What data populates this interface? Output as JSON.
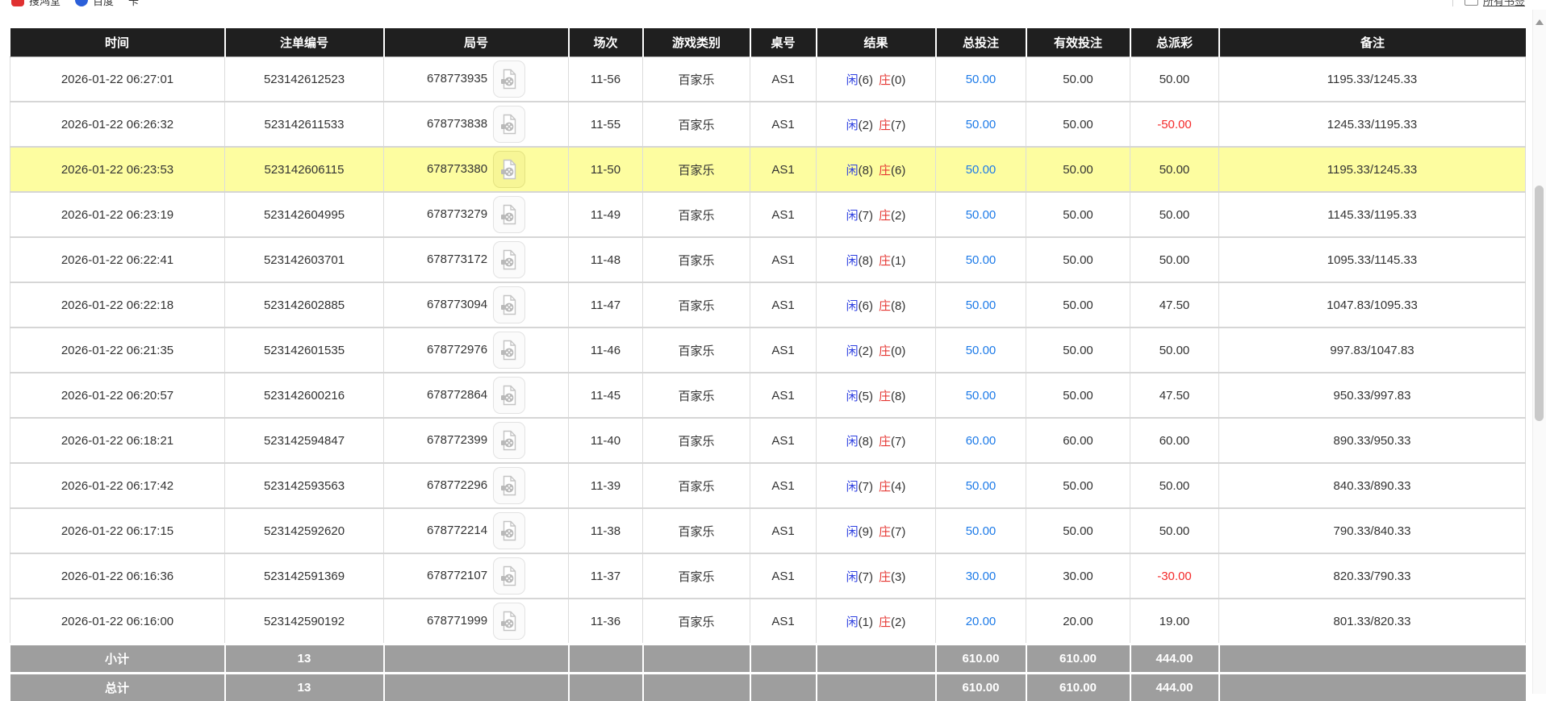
{
  "browser": {
    "bookmarks_bar": {
      "items": [
        {
          "label": "搜鸿堂",
          "icon": "red-bookmark-icon"
        },
        {
          "label": "百度",
          "icon": "blue-bookmark-icon"
        },
        {
          "label": "卡",
          "icon": ""
        }
      ],
      "all_bookmarks_label": "所有书签"
    }
  },
  "table": {
    "columns": [
      "时间",
      "注单编号",
      "局号",
      "场次",
      "游戏类别",
      "桌号",
      "结果",
      "总投注",
      "有效投注",
      "总派彩",
      "备注"
    ],
    "rows": [
      {
        "time": "2026-01-22 06:27:01",
        "bet_id": "523142612523",
        "round_id": "678773935",
        "session": "11-56",
        "game_type": "百家乐",
        "table_no": "AS1",
        "result": {
          "player_label": "闲",
          "player_score": "6",
          "banker_label": "庄",
          "banker_score": "0"
        },
        "total_bet": "50.00",
        "valid_bet": "50.00",
        "payout": "50.00",
        "remark": "1195.33/1245.33",
        "highlighted": false
      },
      {
        "time": "2026-01-22 06:26:32",
        "bet_id": "523142611533",
        "round_id": "678773838",
        "session": "11-55",
        "game_type": "百家乐",
        "table_no": "AS1",
        "result": {
          "player_label": "闲",
          "player_score": "2",
          "banker_label": "庄",
          "banker_score": "7"
        },
        "total_bet": "50.00",
        "valid_bet": "50.00",
        "payout": "-50.00",
        "remark": "1245.33/1195.33",
        "highlighted": false
      },
      {
        "time": "2026-01-22 06:23:53",
        "bet_id": "523142606115",
        "round_id": "678773380",
        "session": "11-50",
        "game_type": "百家乐",
        "table_no": "AS1",
        "result": {
          "player_label": "闲",
          "player_score": "8",
          "banker_label": "庄",
          "banker_score": "6"
        },
        "total_bet": "50.00",
        "valid_bet": "50.00",
        "payout": "50.00",
        "remark": "1195.33/1245.33",
        "highlighted": true
      },
      {
        "time": "2026-01-22 06:23:19",
        "bet_id": "523142604995",
        "round_id": "678773279",
        "session": "11-49",
        "game_type": "百家乐",
        "table_no": "AS1",
        "result": {
          "player_label": "闲",
          "player_score": "7",
          "banker_label": "庄",
          "banker_score": "2"
        },
        "total_bet": "50.00",
        "valid_bet": "50.00",
        "payout": "50.00",
        "remark": "1145.33/1195.33",
        "highlighted": false
      },
      {
        "time": "2026-01-22 06:22:41",
        "bet_id": "523142603701",
        "round_id": "678773172",
        "session": "11-48",
        "game_type": "百家乐",
        "table_no": "AS1",
        "result": {
          "player_label": "闲",
          "player_score": "8",
          "banker_label": "庄",
          "banker_score": "1"
        },
        "total_bet": "50.00",
        "valid_bet": "50.00",
        "payout": "50.00",
        "remark": "1095.33/1145.33",
        "highlighted": false
      },
      {
        "time": "2026-01-22 06:22:18",
        "bet_id": "523142602885",
        "round_id": "678773094",
        "session": "11-47",
        "game_type": "百家乐",
        "table_no": "AS1",
        "result": {
          "player_label": "闲",
          "player_score": "6",
          "banker_label": "庄",
          "banker_score": "8"
        },
        "total_bet": "50.00",
        "valid_bet": "50.00",
        "payout": "47.50",
        "remark": "1047.83/1095.33",
        "highlighted": false
      },
      {
        "time": "2026-01-22 06:21:35",
        "bet_id": "523142601535",
        "round_id": "678772976",
        "session": "11-46",
        "game_type": "百家乐",
        "table_no": "AS1",
        "result": {
          "player_label": "闲",
          "player_score": "2",
          "banker_label": "庄",
          "banker_score": "0"
        },
        "total_bet": "50.00",
        "valid_bet": "50.00",
        "payout": "50.00",
        "remark": "997.83/1047.83",
        "highlighted": false
      },
      {
        "time": "2026-01-22 06:20:57",
        "bet_id": "523142600216",
        "round_id": "678772864",
        "session": "11-45",
        "game_type": "百家乐",
        "table_no": "AS1",
        "result": {
          "player_label": "闲",
          "player_score": "5",
          "banker_label": "庄",
          "banker_score": "8"
        },
        "total_bet": "50.00",
        "valid_bet": "50.00",
        "payout": "47.50",
        "remark": "950.33/997.83",
        "highlighted": false
      },
      {
        "time": "2026-01-22 06:18:21",
        "bet_id": "523142594847",
        "round_id": "678772399",
        "session": "11-40",
        "game_type": "百家乐",
        "table_no": "AS1",
        "result": {
          "player_label": "闲",
          "player_score": "8",
          "banker_label": "庄",
          "banker_score": "7"
        },
        "total_bet": "60.00",
        "valid_bet": "60.00",
        "payout": "60.00",
        "remark": "890.33/950.33",
        "highlighted": false
      },
      {
        "time": "2026-01-22 06:17:42",
        "bet_id": "523142593563",
        "round_id": "678772296",
        "session": "11-39",
        "game_type": "百家乐",
        "table_no": "AS1",
        "result": {
          "player_label": "闲",
          "player_score": "7",
          "banker_label": "庄",
          "banker_score": "4"
        },
        "total_bet": "50.00",
        "valid_bet": "50.00",
        "payout": "50.00",
        "remark": "840.33/890.33",
        "highlighted": false
      },
      {
        "time": "2026-01-22 06:17:15",
        "bet_id": "523142592620",
        "round_id": "678772214",
        "session": "11-38",
        "game_type": "百家乐",
        "table_no": "AS1",
        "result": {
          "player_label": "闲",
          "player_score": "9",
          "banker_label": "庄",
          "banker_score": "7"
        },
        "total_bet": "50.00",
        "valid_bet": "50.00",
        "payout": "50.00",
        "remark": "790.33/840.33",
        "highlighted": false
      },
      {
        "time": "2026-01-22 06:16:36",
        "bet_id": "523142591369",
        "round_id": "678772107",
        "session": "11-37",
        "game_type": "百家乐",
        "table_no": "AS1",
        "result": {
          "player_label": "闲",
          "player_score": "7",
          "banker_label": "庄",
          "banker_score": "3"
        },
        "total_bet": "30.00",
        "valid_bet": "30.00",
        "payout": "-30.00",
        "remark": "820.33/790.33",
        "highlighted": false
      },
      {
        "time": "2026-01-22 06:16:00",
        "bet_id": "523142590192",
        "round_id": "678771999",
        "session": "11-36",
        "game_type": "百家乐",
        "table_no": "AS1",
        "result": {
          "player_label": "闲",
          "player_score": "1",
          "banker_label": "庄",
          "banker_score": "2"
        },
        "total_bet": "20.00",
        "valid_bet": "20.00",
        "payout": "19.00",
        "remark": "801.33/820.33",
        "highlighted": false
      }
    ],
    "footer": {
      "subtotal_label": "小计",
      "total_label": "总计",
      "count": "13",
      "total_bet": "610.00",
      "valid_bet": "610.00",
      "payout": "444.00"
    }
  },
  "colors": {
    "header_bg": "#1F1F1F",
    "highlight_row": "#FDFDA0",
    "summary_bg": "#9E9E9E",
    "link_blue": "#1E7BE8",
    "player_blue": "#2D3FE0",
    "banker_red": "#E53935",
    "negative_red": "#F42A2A"
  }
}
